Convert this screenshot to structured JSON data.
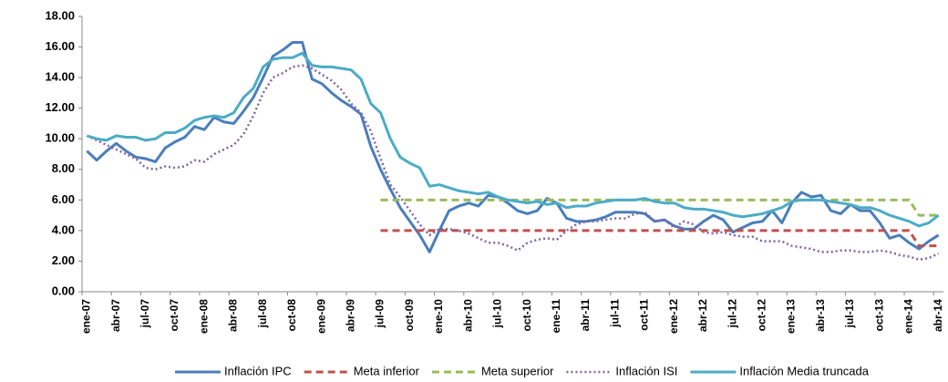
{
  "chart_data": {
    "type": "line",
    "categories": [
      "ene-07",
      null,
      null,
      "abr-07",
      null,
      null,
      "jul-07",
      null,
      null,
      "oct-07",
      null,
      null,
      "ene-08",
      null,
      null,
      "abr-08",
      null,
      null,
      "jul-08",
      null,
      null,
      "oct-08",
      null,
      null,
      "ene-09",
      null,
      null,
      "abr-09",
      null,
      null,
      "jul-09",
      null,
      null,
      "oct-09",
      null,
      null,
      "ene-10",
      null,
      null,
      "abr-10",
      null,
      null,
      "jul-10",
      null,
      null,
      "oct-10",
      null,
      null,
      "ene-11",
      null,
      null,
      "abr-11",
      null,
      null,
      "jul-11",
      null,
      null,
      "oct-11",
      null,
      null,
      "ene-12",
      null,
      null,
      "abr-12",
      null,
      null,
      "jul-12",
      null,
      null,
      "oct-12",
      null,
      null,
      "ene-13",
      null,
      null,
      "abr-13",
      null,
      null,
      "jul-13",
      null,
      null,
      "oct-13",
      null,
      null,
      "ene-14",
      null,
      null,
      "abr-14"
    ],
    "series": [
      {
        "name": "Inflación IPC",
        "color": "#4a7ebb",
        "style": "solid",
        "values": [
          9.2,
          8.6,
          9.2,
          9.7,
          9.2,
          8.8,
          8.7,
          8.5,
          9.4,
          9.8,
          10.1,
          10.8,
          10.6,
          11.4,
          11.1,
          11.0,
          11.8,
          12.7,
          14.0,
          15.4,
          15.8,
          16.3,
          16.3,
          13.9,
          13.6,
          13.0,
          12.5,
          12.1,
          11.6,
          9.5,
          8.0,
          6.7,
          5.5,
          4.6,
          3.7,
          2.6,
          4.0,
          5.3,
          5.6,
          5.8,
          5.6,
          6.3,
          6.2,
          5.8,
          5.3,
          5.1,
          5.3,
          6.1,
          5.8,
          4.8,
          4.6,
          4.6,
          4.7,
          4.9,
          5.2,
          5.2,
          5.2,
          5.1,
          4.6,
          4.7,
          4.3,
          4.1,
          4.1,
          4.6,
          5.0,
          4.7,
          3.9,
          4.2,
          4.5,
          4.6,
          5.3,
          4.5,
          5.8,
          6.5,
          6.2,
          6.3,
          5.3,
          5.1,
          5.7,
          5.3,
          5.3,
          4.5,
          3.5,
          3.7,
          3.2,
          2.8,
          3.3,
          3.7
        ]
      },
      {
        "name": "Meta inferior",
        "color": "#c0504d",
        "style": "dashed",
        "values": [
          null,
          null,
          null,
          null,
          null,
          null,
          null,
          null,
          null,
          null,
          null,
          null,
          null,
          null,
          null,
          null,
          null,
          null,
          null,
          null,
          null,
          null,
          null,
          null,
          null,
          null,
          null,
          null,
          null,
          null,
          4,
          4,
          4,
          4,
          4,
          4,
          4,
          4,
          4,
          4,
          4,
          4,
          4,
          4,
          4,
          4,
          4,
          4,
          4,
          4,
          4,
          4,
          4,
          4,
          4,
          4,
          4,
          4,
          4,
          4,
          4,
          4,
          4,
          4,
          4,
          4,
          4,
          4,
          4,
          4,
          4,
          4,
          4,
          4,
          4,
          4,
          4,
          4,
          4,
          4,
          4,
          4,
          4,
          4,
          4,
          3,
          3,
          3
        ]
      },
      {
        "name": "Meta superior",
        "color": "#9bbb59",
        "style": "dashed",
        "values": [
          null,
          null,
          null,
          null,
          null,
          null,
          null,
          null,
          null,
          null,
          null,
          null,
          null,
          null,
          null,
          null,
          null,
          null,
          null,
          null,
          null,
          null,
          null,
          null,
          null,
          null,
          null,
          null,
          null,
          null,
          6,
          6,
          6,
          6,
          6,
          6,
          6,
          6,
          6,
          6,
          6,
          6,
          6,
          6,
          6,
          6,
          6,
          6,
          6,
          6,
          6,
          6,
          6,
          6,
          6,
          6,
          6,
          6,
          6,
          6,
          6,
          6,
          6,
          6,
          6,
          6,
          6,
          6,
          6,
          6,
          6,
          6,
          6,
          6,
          6,
          6,
          6,
          6,
          6,
          6,
          6,
          6,
          6,
          6,
          6,
          5,
          5,
          5
        ]
      },
      {
        "name": "Inflación ISI",
        "color": "#8064a2",
        "style": "dotted",
        "values": [
          10.2,
          9.9,
          9.6,
          9.3,
          9.0,
          8.7,
          8.1,
          8.0,
          8.2,
          8.1,
          8.2,
          8.6,
          8.5,
          9.0,
          9.3,
          9.6,
          10.3,
          11.5,
          13.0,
          14.0,
          14.3,
          14.7,
          14.8,
          14.6,
          14.2,
          13.8,
          13.2,
          12.3,
          11.7,
          10.5,
          8.7,
          7.0,
          6.2,
          5.3,
          4.4,
          3.7,
          4.1,
          4.1,
          4.0,
          3.8,
          3.5,
          3.2,
          3.2,
          3.0,
          2.7,
          3.2,
          3.4,
          3.5,
          3.4,
          4.0,
          4.4,
          4.6,
          4.6,
          4.7,
          4.8,
          4.8,
          5.1,
          5.2,
          4.6,
          4.7,
          4.2,
          4.6,
          4.4,
          3.9,
          3.8,
          3.9,
          3.7,
          3.6,
          3.6,
          3.3,
          3.3,
          3.3,
          3.0,
          2.9,
          2.8,
          2.6,
          2.6,
          2.7,
          2.7,
          2.6,
          2.6,
          2.7,
          2.6,
          2.4,
          2.3,
          2.1,
          2.2,
          2.5
        ]
      },
      {
        "name": "Inflación Media truncada",
        "color": "#4bacc6",
        "style": "solid",
        "values": [
          10.2,
          10.0,
          9.9,
          10.2,
          10.1,
          10.1,
          9.9,
          10.0,
          10.4,
          10.4,
          10.7,
          11.2,
          11.4,
          11.5,
          11.4,
          11.7,
          12.7,
          13.3,
          14.7,
          15.2,
          15.3,
          15.3,
          15.6,
          14.8,
          14.7,
          14.7,
          14.6,
          14.5,
          13.9,
          12.3,
          11.7,
          10.0,
          8.8,
          8.4,
          8.1,
          6.9,
          7.0,
          6.8,
          6.6,
          6.5,
          6.4,
          6.5,
          6.2,
          6.0,
          5.9,
          5.8,
          5.9,
          5.7,
          5.8,
          5.5,
          5.6,
          5.6,
          5.8,
          5.9,
          6.0,
          6.0,
          6.0,
          6.1,
          5.9,
          5.8,
          5.8,
          5.5,
          5.4,
          5.4,
          5.3,
          5.2,
          5.0,
          4.9,
          5.0,
          5.1,
          5.3,
          5.5,
          5.9,
          6.0,
          6.0,
          6.0,
          5.9,
          5.8,
          5.7,
          5.5,
          5.5,
          5.3,
          5.0,
          4.8,
          4.6,
          4.3,
          4.5,
          5.0
        ]
      }
    ],
    "ylim": [
      0,
      18
    ],
    "yticks": [
      {
        "value": 0,
        "label": "0.00"
      },
      {
        "value": 2,
        "label": "2.00"
      },
      {
        "value": 4,
        "label": "4.00"
      },
      {
        "value": 6,
        "label": "6.00"
      },
      {
        "value": 8,
        "label": "8.00"
      },
      {
        "value": 10,
        "label": "10.00"
      },
      {
        "value": 12,
        "label": "12.00"
      },
      {
        "value": 14,
        "label": "14.00"
      },
      {
        "value": 16,
        "label": "16.00"
      },
      {
        "value": 18,
        "label": "18.00"
      }
    ],
    "grid": false,
    "legend": "bottom"
  }
}
